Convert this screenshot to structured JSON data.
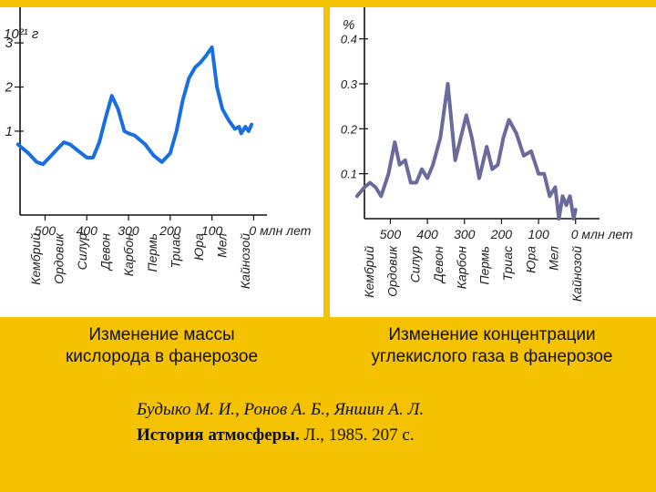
{
  "colors": {
    "background": "#f5c200",
    "panel": "#ffffff",
    "oxygen_line": "#1a6fe0",
    "co2_line": "#6a6a9c",
    "axis": "#111111"
  },
  "chart_data": [
    {
      "type": "line",
      "title": "",
      "ylabel": "10²¹ г",
      "xlabel": "0 млн лет",
      "x_unit": "млн лет",
      "xlim": [
        560,
        -10
      ],
      "ylim": [
        -0.9,
        3.6
      ],
      "x_ticks": [
        500,
        400,
        300,
        200,
        100,
        0
      ],
      "y_ticks": [
        1,
        2,
        3
      ],
      "x_tick_labels": [
        "500",
        "400",
        "300",
        "200",
        "100",
        "0"
      ],
      "y_tick_labels": [
        "1",
        "2",
        "3"
      ],
      "periods": [
        "Кембрий",
        "Ордовик",
        "Силур",
        "Девон",
        "Карбон",
        "Пермь",
        "Триас",
        "Юра",
        "Мел",
        "Кайнозой"
      ],
      "grid": false,
      "series": [
        {
          "x": [
            565,
            540,
            520,
            505,
            490,
            470,
            455,
            440,
            420,
            400,
            385,
            370,
            355,
            340,
            325,
            310,
            300,
            285,
            260,
            240,
            220,
            200,
            185,
            170,
            155,
            140,
            128,
            115,
            100,
            88,
            75,
            60,
            45,
            35,
            30,
            20,
            12,
            5
          ],
          "y": [
            0.7,
            0.5,
            0.3,
            0.25,
            0.4,
            0.6,
            0.75,
            0.7,
            0.55,
            0.4,
            0.4,
            0.75,
            1.3,
            1.8,
            1.5,
            1.0,
            0.95,
            0.9,
            0.7,
            0.45,
            0.3,
            0.5,
            1.0,
            1.7,
            2.2,
            2.45,
            2.55,
            2.7,
            2.9,
            2.0,
            1.5,
            1.25,
            1.05,
            1.1,
            0.95,
            1.1,
            1.0,
            1.15
          ]
        }
      ]
    },
    {
      "type": "line",
      "title": "",
      "ylabel": "%",
      "xlabel": "0 млн лет",
      "x_unit": "млн лет",
      "xlim": [
        570,
        -40
      ],
      "ylim": [
        0.0,
        0.45
      ],
      "x_ticks": [
        500,
        400,
        300,
        200,
        100,
        0
      ],
      "y_ticks": [
        0.1,
        0.2,
        0.3,
        0.4
      ],
      "x_tick_labels": [
        "500",
        "400",
        "300",
        "200",
        "100",
        "0"
      ],
      "y_tick_labels": [
        "0.1",
        "0.2",
        "0.3",
        "0.4"
      ],
      "periods": [
        "Кембрий",
        "Ордовик",
        "Силур",
        "Девон",
        "Карбон",
        "Пермь",
        "Триас",
        "Юра",
        "Мел",
        "Кайнозой"
      ],
      "grid": false,
      "series": [
        {
          "x": [
            590,
            570,
            555,
            540,
            525,
            505,
            488,
            475,
            460,
            445,
            430,
            415,
            400,
            385,
            365,
            345,
            325,
            310,
            295,
            280,
            260,
            240,
            225,
            210,
            195,
            180,
            160,
            140,
            120,
            100,
            85,
            70,
            55,
            45,
            35,
            25,
            15,
            5,
            0
          ],
          "y": [
            0.05,
            0.07,
            0.08,
            0.07,
            0.05,
            0.1,
            0.17,
            0.12,
            0.13,
            0.08,
            0.08,
            0.11,
            0.09,
            0.12,
            0.18,
            0.3,
            0.13,
            0.18,
            0.23,
            0.18,
            0.09,
            0.16,
            0.11,
            0.12,
            0.18,
            0.22,
            0.19,
            0.14,
            0.15,
            0.1,
            0.1,
            0.05,
            0.07,
            0.0,
            0.05,
            0.03,
            0.05,
            0.0,
            0.02
          ]
        }
      ]
    }
  ],
  "captions": {
    "left": [
      "Изменение массы",
      "кислорода в фанерозое"
    ],
    "right": [
      "Изменение концентрации",
      "углекислого газа в фанерозое"
    ]
  },
  "reference": {
    "authors": "Будыко М. И., Ронов А. Б., Яншин А. Л.",
    "title": "История атмосферы.",
    "rest": " Л., 1985. 207 с."
  }
}
